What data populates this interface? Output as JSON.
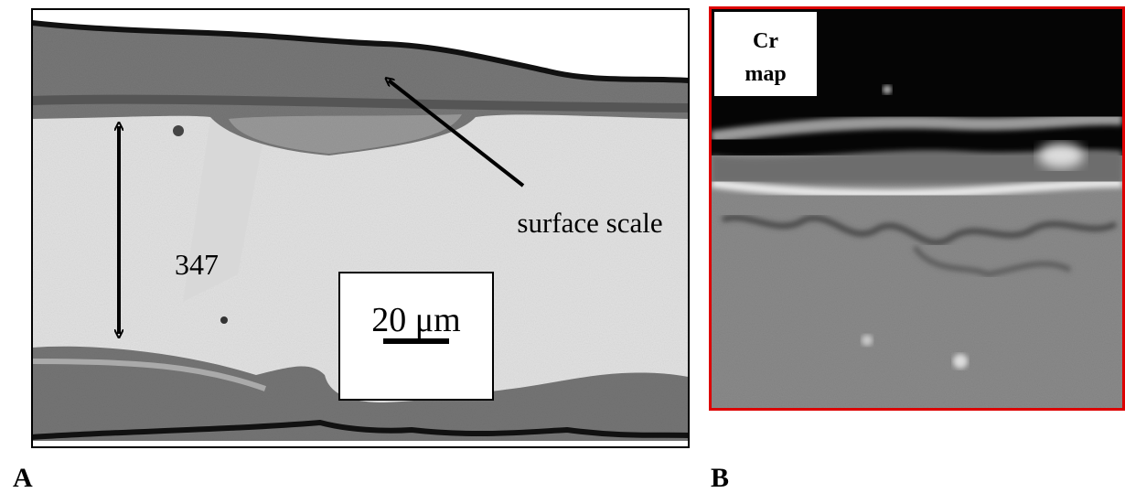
{
  "panels": [
    {
      "label": "A",
      "arrow_label": "surface scale",
      "material": "347",
      "scale_bar": "20 μm"
    },
    {
      "label": "B",
      "map_label": [
        "Cr",
        "map"
      ]
    }
  ]
}
